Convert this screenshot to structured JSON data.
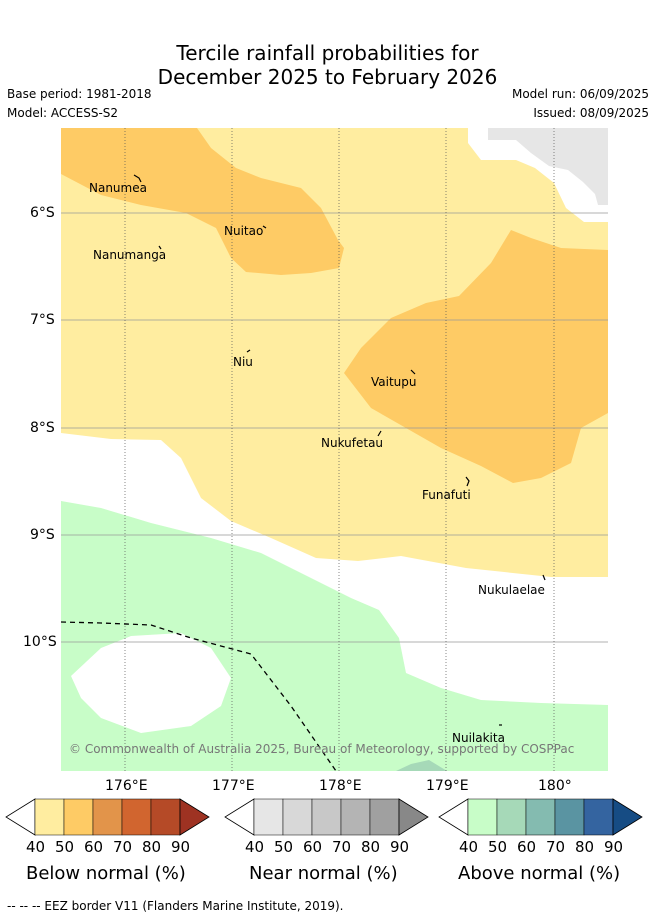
{
  "header": {
    "title_line1": "Tercile rainfall probabilities for",
    "title_line2": "December 2025 to February 2026",
    "base_period": "Base period: 1981-2018",
    "model": "Model: ACCESS-S2",
    "model_run": "Model run: 06/09/2025",
    "issued": "Issued: 08/09/2025"
  },
  "map": {
    "longitude_labels": [
      "176°E",
      "177°E",
      "178°E",
      "179°E",
      "180°"
    ],
    "latitude_labels": [
      "6°S",
      "7°S",
      "8°S",
      "9°S",
      "10°S"
    ],
    "islands": [
      "Nanumea",
      "Nuitao",
      "Nanumanga",
      "Niu",
      "Vaitupu",
      "Nukufetau",
      "Funafuti",
      "Nukulaelae",
      "Nuilakita"
    ],
    "copyright": "© Commonwealth of Australia 2025, Bureau of Meteorology, supported by COSPPac",
    "colors": {
      "below_40": "#ffeda0",
      "below_50": "#fecb65",
      "near_40": "#e6e6e6",
      "above_40": "#c8fdc8",
      "above_50": "#a6d9b8",
      "no_signal": "#ffffff"
    }
  },
  "colorbars": [
    {
      "title": "Below normal (%)",
      "ticks": [
        "40",
        "50",
        "60",
        "70",
        "80",
        "90"
      ],
      "colors": [
        "#ffeda0",
        "#fecb65",
        "#e2944a",
        "#d1652f",
        "#b54a27",
        "#9e3222"
      ]
    },
    {
      "title": "Near normal (%)",
      "ticks": [
        "40",
        "50",
        "60",
        "70",
        "80",
        "90"
      ],
      "colors": [
        "#e6e6e6",
        "#d8d8d8",
        "#c8c8c8",
        "#b4b4b4",
        "#a0a0a0",
        "#888888"
      ]
    },
    {
      "title": "Above normal (%)",
      "ticks": [
        "40",
        "50",
        "60",
        "70",
        "80",
        "90"
      ],
      "colors": [
        "#c8fdc8",
        "#a6d9b8",
        "#84bbb0",
        "#5a94a2",
        "#3464a0",
        "#164c84"
      ]
    }
  ],
  "footer": "--  --  -- EEZ border V11 (Flanders Marine Institute, 2019)."
}
